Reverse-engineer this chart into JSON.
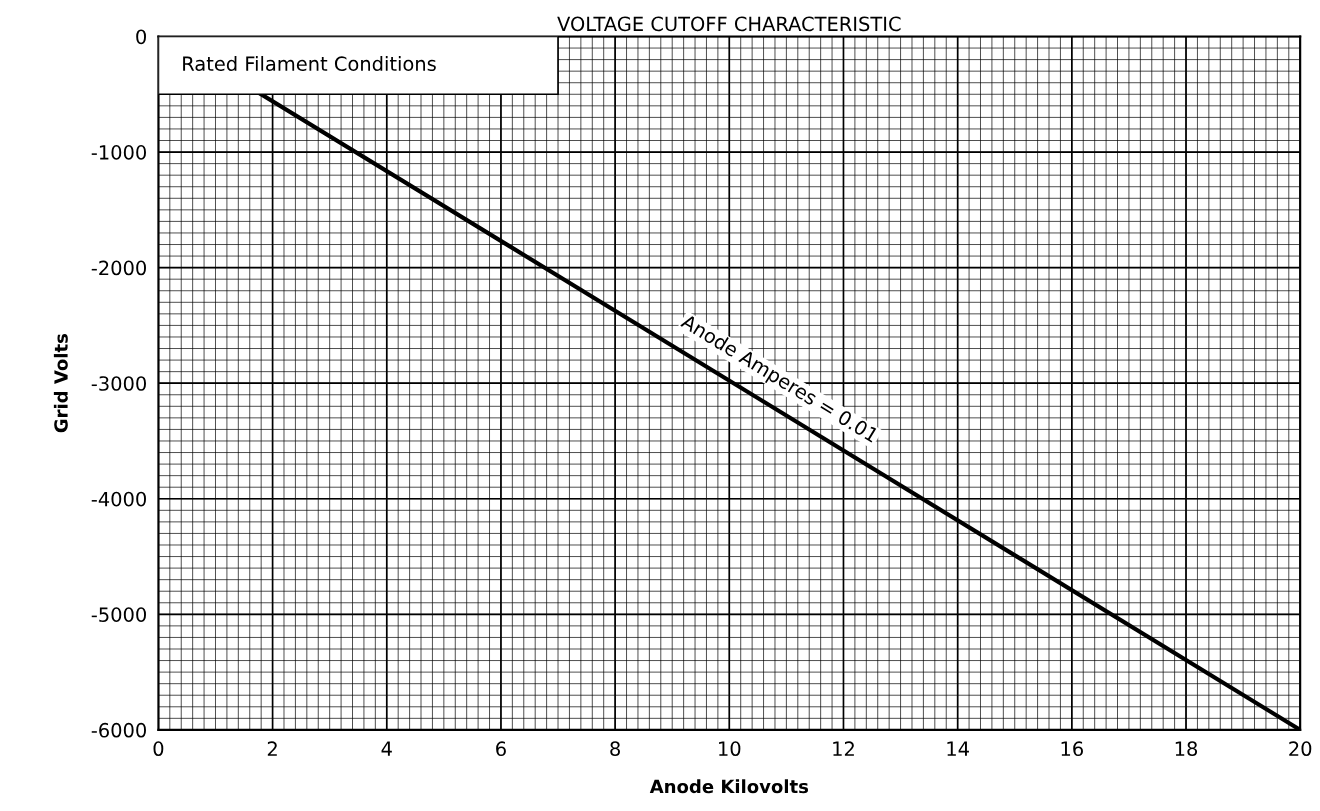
{
  "chart_data": {
    "type": "line",
    "title": "VOLTAGE CUTOFF CHARACTERISTIC",
    "xlabel": "Anode Kilovolts",
    "ylabel": "Grid Volts",
    "annotations": [
      "Rated Filament Conditions"
    ],
    "x": [
      1.8,
      20
    ],
    "series": [
      {
        "name": "Anode Amperes = 0.01",
        "color": "#000000",
        "values": [
          -500,
          -6000
        ]
      }
    ],
    "xlim": [
      0,
      20
    ],
    "xticks": [
      0,
      2,
      4,
      6,
      8,
      10,
      12,
      14,
      16,
      18,
      20
    ],
    "ylim": [
      -6000,
      0
    ],
    "yticks": [
      -6000,
      -5000,
      -4000,
      -3000,
      -2000,
      -1000,
      0
    ],
    "grid": true,
    "marker": "none",
    "line_style": "solid"
  }
}
